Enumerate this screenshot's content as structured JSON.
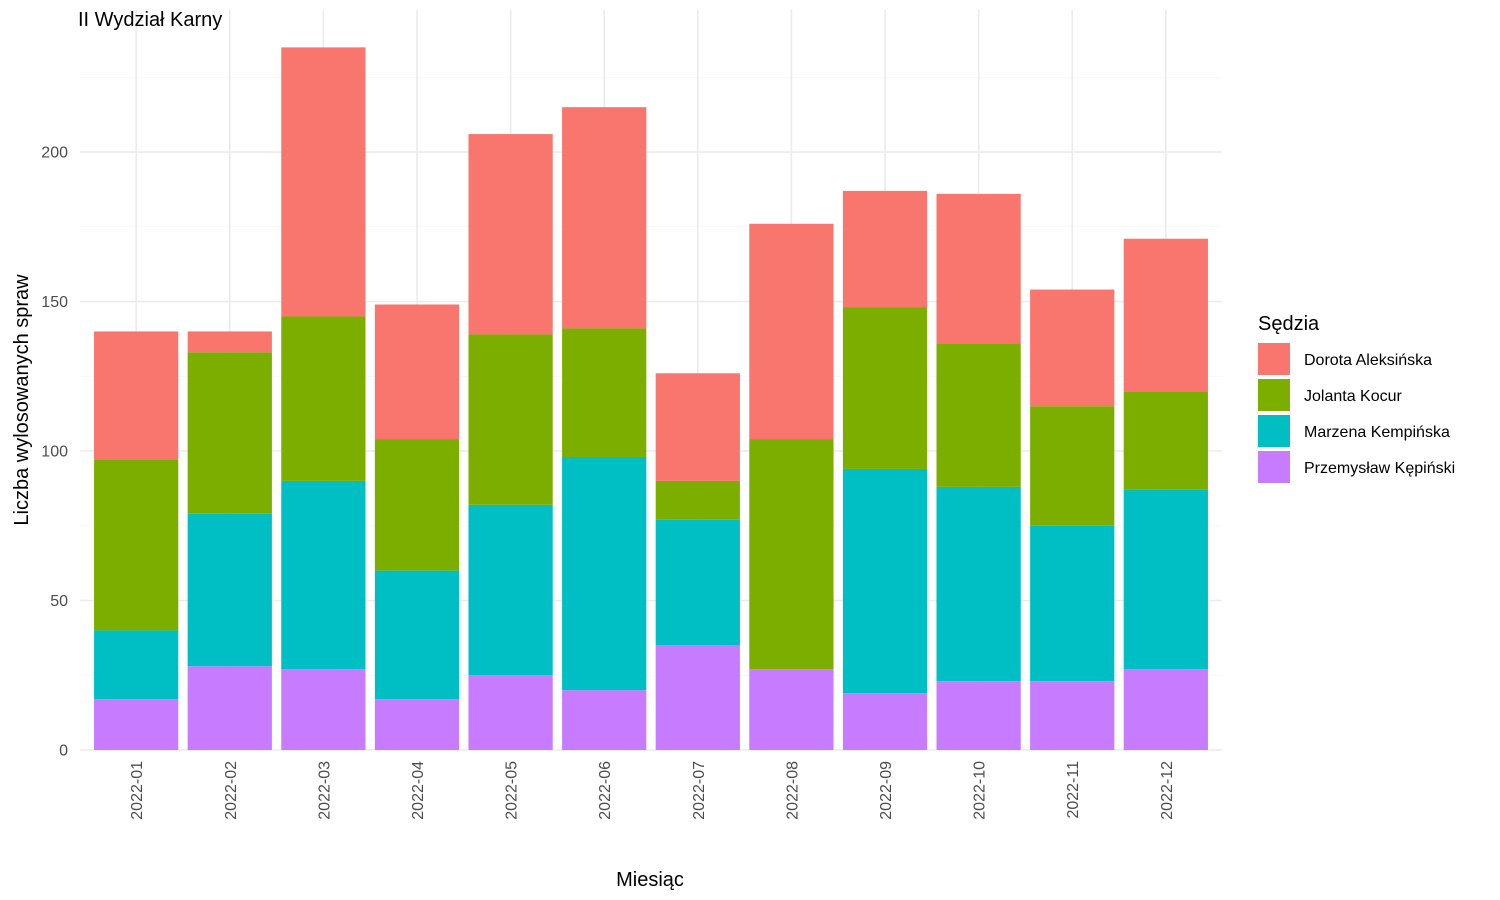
{
  "chart_data": {
    "type": "bar",
    "stacked": true,
    "title": "II Wydział Karny",
    "xlabel": "Miesiąc",
    "ylabel": "Liczba wylosowanych spraw",
    "ylim": [
      0,
      240
    ],
    "yticks": [
      0,
      50,
      100,
      150,
      200
    ],
    "grid": true,
    "legend_title": "Sędzia",
    "legend_position": "right",
    "categories": [
      "2022-01",
      "2022-02",
      "2022-03",
      "2022-04",
      "2022-05",
      "2022-06",
      "2022-07",
      "2022-08",
      "2022-09",
      "2022-10",
      "2022-11",
      "2022-12"
    ],
    "series": [
      {
        "name": "Dorota Aleksińska",
        "color": "#F8766D",
        "values": [
          43,
          7,
          90,
          45,
          67,
          74,
          36,
          72,
          39,
          50,
          39,
          51
        ]
      },
      {
        "name": "Jolanta Kocur",
        "color": "#7CAE00",
        "values": [
          57,
          54,
          55,
          44,
          57,
          43,
          13,
          77,
          54,
          48,
          40,
          33
        ]
      },
      {
        "name": "Marzena Kempińska",
        "color": "#00BFC4",
        "values": [
          23,
          51,
          63,
          43,
          57,
          78,
          42,
          0,
          75,
          65,
          52,
          60
        ]
      },
      {
        "name": "Przemysław Kępiński",
        "color": "#C77CFF",
        "values": [
          17,
          28,
          27,
          17,
          25,
          20,
          35,
          27,
          19,
          23,
          23,
          27
        ]
      }
    ]
  }
}
